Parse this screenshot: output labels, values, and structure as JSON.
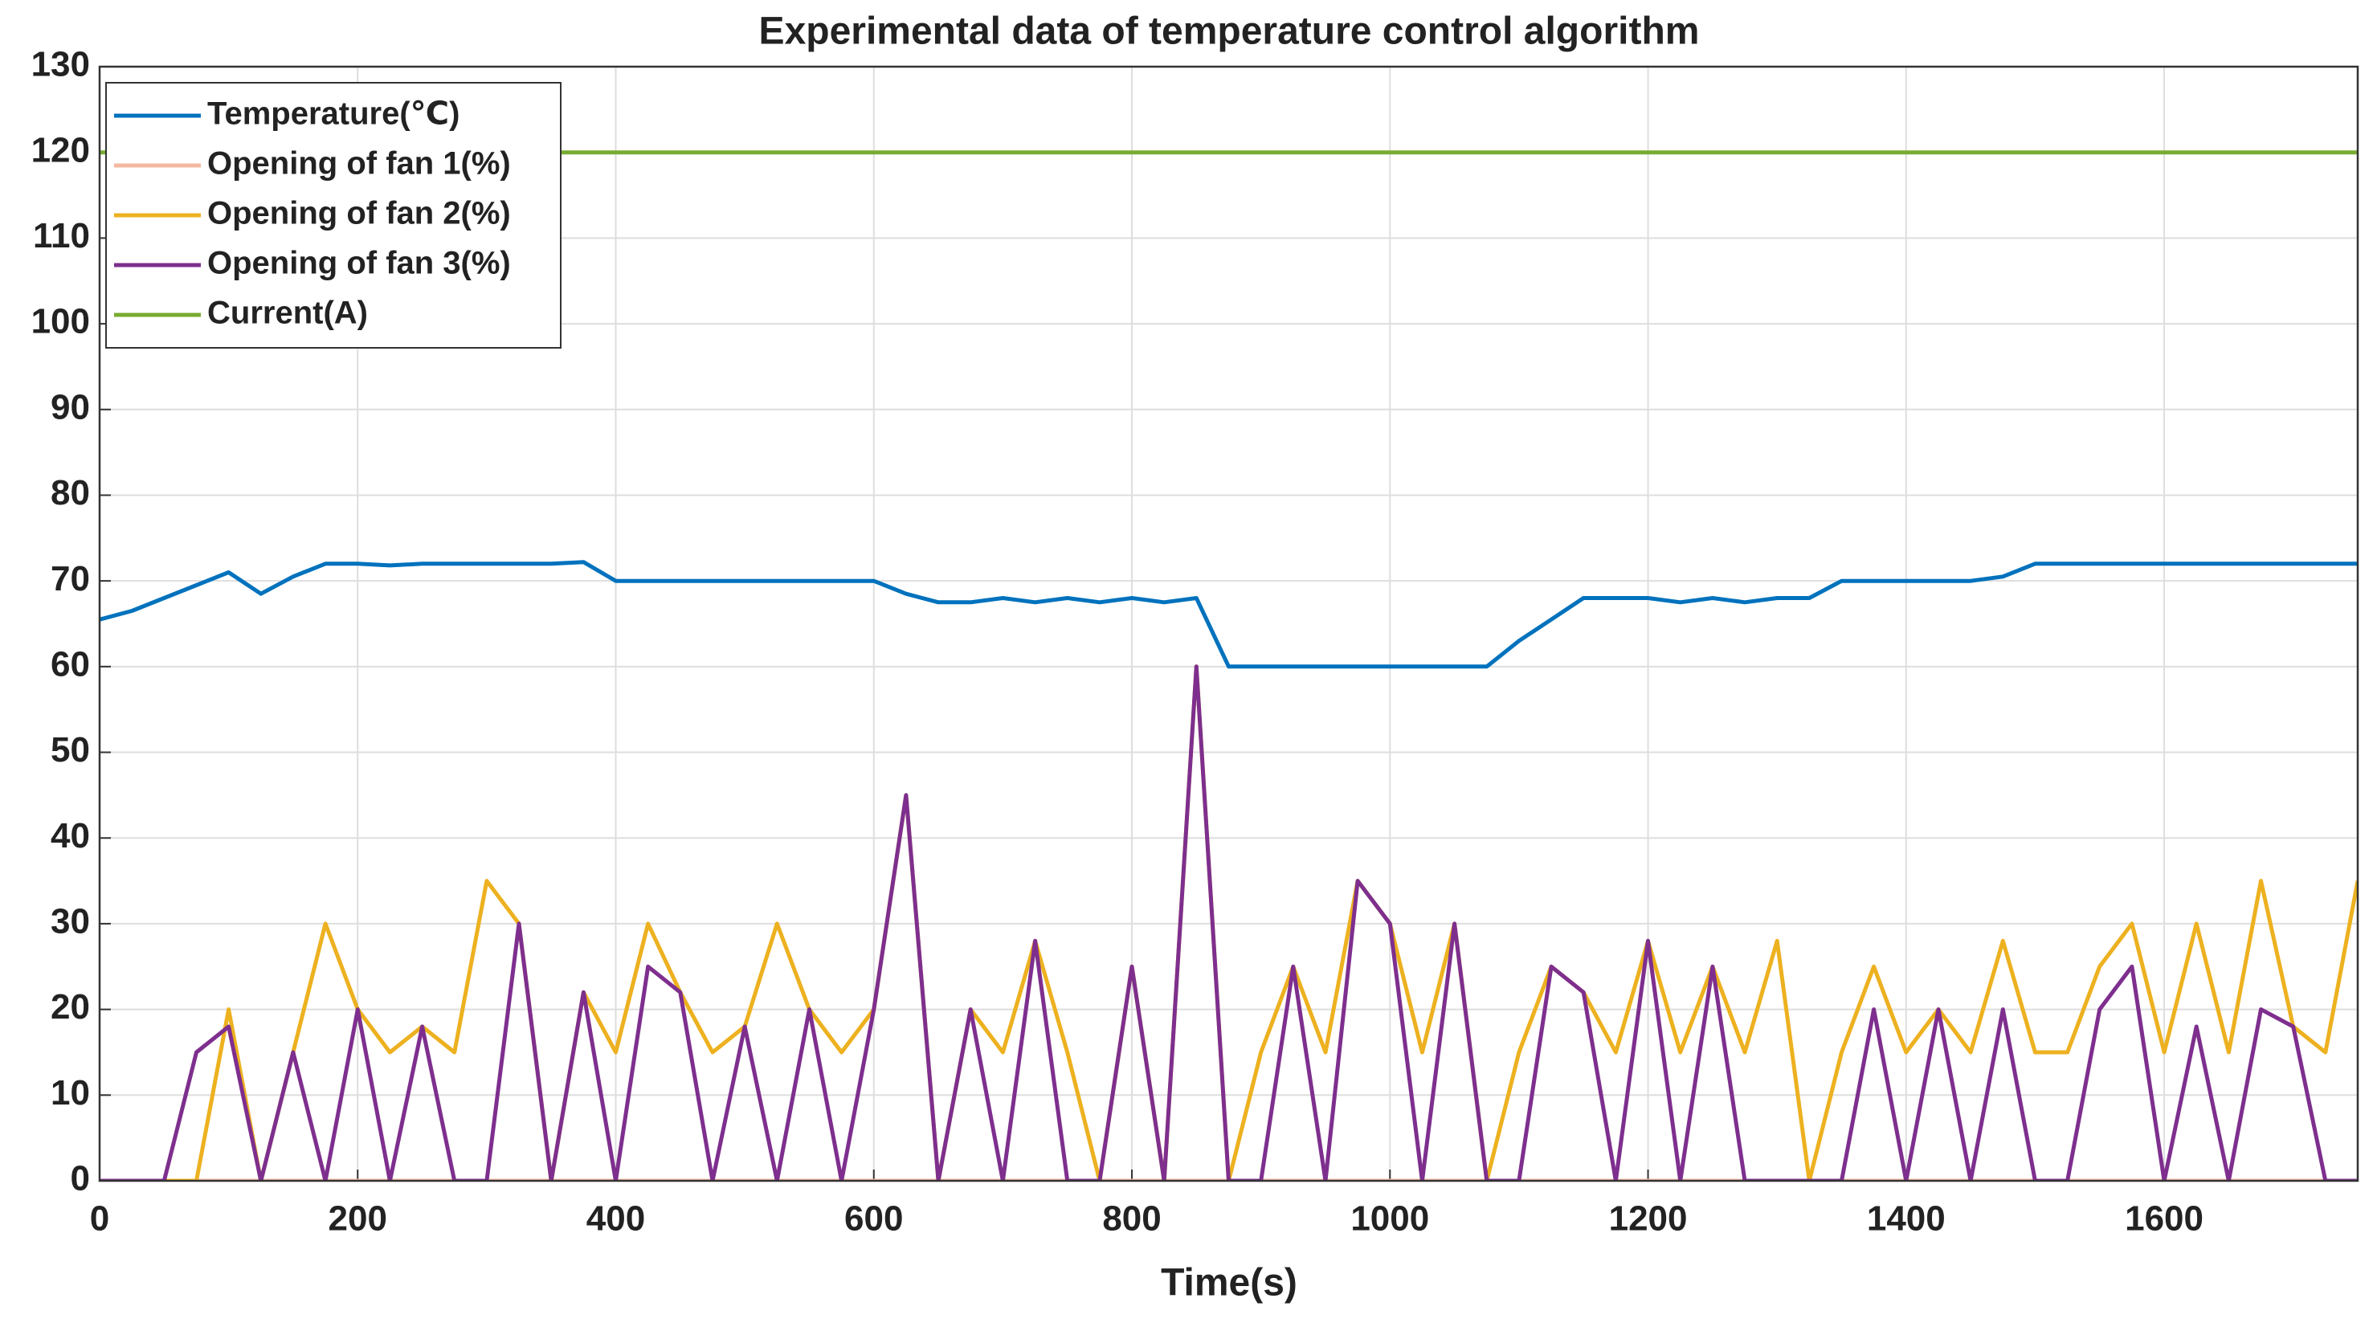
{
  "chart_data": {
    "type": "line",
    "title": "Experimental data of temperature control algorithm",
    "x_label": "Time(s)",
    "x": [
      0,
      25,
      50,
      75,
      100,
      125,
      150,
      175,
      200,
      225,
      250,
      275,
      300,
      325,
      350,
      375,
      400,
      425,
      450,
      475,
      500,
      525,
      550,
      575,
      600,
      625,
      650,
      675,
      700,
      725,
      750,
      775,
      800,
      825,
      850,
      875,
      900,
      925,
      950,
      975,
      1000,
      1025,
      1050,
      1075,
      1100,
      1125,
      1150,
      1175,
      1200,
      1225,
      1250,
      1275,
      1300,
      1325,
      1350,
      1375,
      1400,
      1425,
      1450,
      1475,
      1500,
      1525,
      1550,
      1575,
      1600,
      1625,
      1650,
      1675,
      1700,
      1725,
      1750
    ],
    "series": [
      {
        "name": "Temperature(℃)",
        "color": "#0072bd",
        "values": [
          65.5,
          66.5,
          68,
          69.5,
          71,
          68.5,
          70.5,
          72,
          72,
          71.8,
          72,
          72,
          72,
          72,
          72,
          72.2,
          70,
          70,
          70,
          70,
          70,
          70,
          70,
          70,
          70,
          68.5,
          67.5,
          67.5,
          68,
          67.5,
          68,
          67.5,
          68,
          67.5,
          68,
          60,
          60,
          60,
          60,
          60,
          60,
          60,
          60,
          60,
          63,
          65.5,
          68,
          68,
          68,
          67.5,
          68,
          67.5,
          68,
          68,
          70,
          70,
          70,
          70,
          70,
          70.5,
          72,
          72,
          72,
          72,
          72,
          72,
          72,
          72,
          72,
          72,
          72
        ]
      },
      {
        "name": "Opening of fan 1(%)",
        "color": "#f4b8a0",
        "values": [
          0,
          0,
          0,
          0,
          0,
          0,
          0,
          0,
          0,
          0,
          0,
          0,
          0,
          0,
          0,
          0,
          0,
          0,
          0,
          0,
          0,
          0,
          0,
          0,
          0,
          0,
          0,
          0,
          0,
          0,
          0,
          0,
          0,
          0,
          0,
          0,
          0,
          0,
          0,
          0,
          0,
          0,
          0,
          0,
          0,
          0,
          0,
          0,
          0,
          0,
          0,
          0,
          0,
          0,
          0,
          0,
          0,
          0,
          0,
          0,
          0,
          0,
          0,
          0,
          0,
          0,
          0,
          0,
          0,
          0,
          0
        ]
      },
      {
        "name": "Opening of fan 2(%)",
        "color": "#edb120",
        "values": [
          0,
          0,
          0,
          0,
          20,
          0,
          15,
          30,
          20,
          15,
          18,
          15,
          35,
          30,
          0,
          22,
          15,
          30,
          22,
          15,
          18,
          30,
          20,
          15,
          20,
          45,
          0,
          20,
          15,
          28,
          15,
          0,
          25,
          0,
          60,
          0,
          15,
          25,
          15,
          35,
          30,
          15,
          30,
          0,
          15,
          25,
          22,
          15,
          28,
          15,
          25,
          15,
          28,
          0,
          15,
          25,
          15,
          20,
          15,
          28,
          15,
          15,
          25,
          30,
          15,
          30,
          15,
          35,
          18,
          15,
          35
        ]
      },
      {
        "name": "Opening of fan 3(%)",
        "color": "#7e2f8e",
        "values": [
          0,
          0,
          0,
          15,
          18,
          0,
          15,
          0,
          20,
          0,
          18,
          0,
          0,
          30,
          0,
          22,
          0,
          25,
          22,
          0,
          18,
          0,
          20,
          0,
          20,
          45,
          0,
          20,
          0,
          28,
          0,
          0,
          25,
          0,
          60,
          0,
          0,
          25,
          0,
          35,
          30,
          0,
          30,
          0,
          0,
          25,
          22,
          0,
          28,
          0,
          25,
          0,
          0,
          0,
          0,
          20,
          0,
          20,
          0,
          20,
          0,
          0,
          20,
          25,
          0,
          18,
          0,
          20,
          18,
          0,
          0
        ]
      },
      {
        "name": "Current(A)",
        "color": "#77ac30",
        "values": [
          120,
          120,
          120,
          120,
          120,
          120,
          120,
          120,
          120,
          120,
          120,
          120,
          120,
          120,
          120,
          120,
          120,
          120,
          120,
          120,
          120,
          120,
          120,
          120,
          120,
          120,
          120,
          120,
          120,
          120,
          120,
          120,
          120,
          120,
          120,
          120,
          120,
          120,
          120,
          120,
          120,
          120,
          120,
          120,
          120,
          120,
          120,
          120,
          120,
          120,
          120,
          120,
          120,
          120,
          120,
          120,
          120,
          120,
          120,
          120,
          120,
          120,
          120,
          120,
          120,
          120,
          120,
          120,
          120,
          120,
          120
        ]
      }
    ],
    "xlim": [
      0,
      1750
    ],
    "xticks": [
      0,
      200,
      400,
      600,
      800,
      1000,
      1200,
      1400,
      1600
    ],
    "ylim": [
      0,
      130
    ],
    "yticks": [
      0,
      10,
      20,
      30,
      40,
      50,
      60,
      70,
      80,
      90,
      100,
      110,
      120,
      130
    ],
    "grid": true,
    "legend": "upper left"
  }
}
